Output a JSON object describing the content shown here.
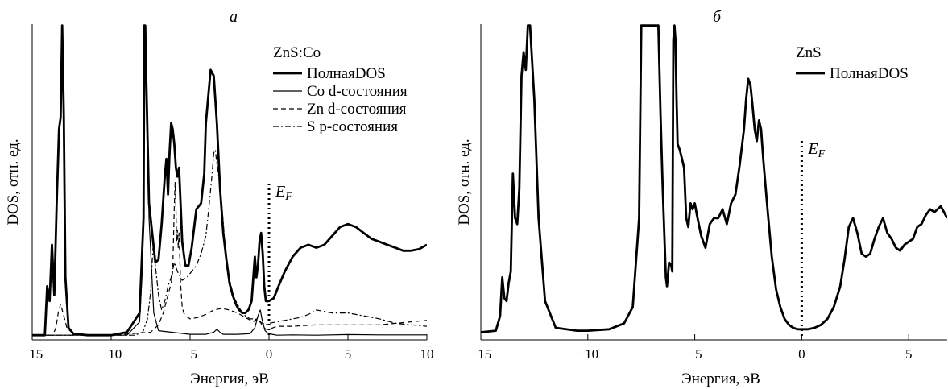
{
  "chart_data": [
    {
      "type": "line",
      "panel_label": "а",
      "xlabel": "Энергия, эВ",
      "ylabel": "DOS, отн. ед.",
      "xlim": [
        -15,
        10
      ],
      "xticks": [
        -15,
        -10,
        -5,
        0,
        5,
        10
      ],
      "tick_labels": [
        "−15",
        "−10",
        "−5",
        "0",
        "5",
        "10"
      ],
      "ylim": [
        0,
        100
      ],
      "legend_title": "ZnS:Co",
      "fermi_label": "E",
      "fermi_sub": "F",
      "fermi_x": 0,
      "series": [
        {
          "name": "ПолнаяDOS",
          "style": "thick",
          "x": [
            -15,
            -14.2,
            -14.05,
            -13.9,
            -13.75,
            -13.6,
            -13.45,
            -13.3,
            -13.2,
            -13.1,
            -13.0,
            -12.9,
            -12.7,
            -12.4,
            -11.5,
            -10,
            -9,
            -8.2,
            -7.95,
            -7.9,
            -7.85,
            -7.6,
            -7.2,
            -7.0,
            -6.8,
            -6.6,
            -6.5,
            -6.4,
            -6.3,
            -6.2,
            -6.1,
            -6.0,
            -5.9,
            -5.8,
            -5.7,
            -5.6,
            -5.5,
            -5.3,
            -5.1,
            -4.9,
            -4.6,
            -4.3,
            -4.1,
            -4.0,
            -3.7,
            -3.5,
            -3.3,
            -3.1,
            -2.9,
            -2.7,
            -2.5,
            -2.3,
            -2.1,
            -1.9,
            -1.7,
            -1.5,
            -1.3,
            -1.1,
            -0.9,
            -0.8,
            -0.7,
            -0.6,
            -0.5,
            -0.4,
            -0.3,
            -0.2,
            0.0,
            0.3,
            0.6,
            1.0,
            1.5,
            2.0,
            2.5,
            3.0,
            3.5,
            4.0,
            4.5,
            5.0,
            5.5,
            6.0,
            6.5,
            7.0,
            7.5,
            8.0,
            8.5,
            9.0,
            9.5,
            10.0
          ],
          "y": [
            0.5,
            0.5,
            17,
            12,
            31,
            14,
            45,
            70,
            74,
            105,
            75,
            20,
            3,
            1,
            0.5,
            0.5,
            1.5,
            8,
            40,
            105,
            105,
            45,
            25,
            26,
            38,
            54,
            60,
            48,
            62,
            72,
            70,
            65,
            57,
            54,
            57,
            45,
            32,
            24,
            24,
            30,
            43,
            45,
            55,
            72,
            90,
            88,
            72,
            50,
            35,
            26,
            18,
            14,
            11,
            9,
            8,
            8,
            9,
            12,
            27,
            20,
            24,
            32,
            35,
            28,
            17,
            12,
            12,
            13,
            17,
            22,
            27,
            30,
            31,
            30,
            31,
            34,
            37,
            38,
            37,
            35,
            33,
            32,
            31,
            30,
            29,
            29,
            29.5,
            31
          ]
        },
        {
          "name": "Co d-состояния",
          "style": "thin",
          "x": [
            -15,
            -9,
            -8.2,
            -8.0,
            -7.95,
            -7.9,
            -7.8,
            -7.6,
            -7.3,
            -7.0,
            -5,
            -4,
            -3.5,
            -3.3,
            -3.1,
            -2.9,
            -2,
            -1.2,
            -0.9,
            -0.7,
            -0.55,
            -0.45,
            -0.35,
            -0.25,
            -0.1,
            0.2,
            0.5,
            1.5,
            3,
            5,
            7,
            10
          ],
          "y": [
            0.5,
            0.5,
            5,
            25,
            60,
            105,
            105,
            40,
            8,
            2,
            0.8,
            0.8,
            1.5,
            2.5,
            1.5,
            0.8,
            0.8,
            1,
            3,
            7,
            9,
            6,
            4,
            2,
            1.3,
            0.8,
            0.5,
            0.6,
            0.5,
            0.7,
            0.6,
            0.6
          ]
        },
        {
          "name": "Zn d-состояния",
          "style": "dashed",
          "x": [
            -15,
            -13.7,
            -13.5,
            -13.35,
            -13.2,
            -13.0,
            -12.8,
            -12.5,
            -12,
            -10,
            -7.5,
            -7,
            -6.7,
            -6.5,
            -6.4,
            -6.3,
            -6.2,
            -6.1,
            -6.0,
            -5.95,
            -5.9,
            -5.85,
            -5.8,
            -5.75,
            -5.7,
            -5.6,
            -5.5,
            -5.4,
            -5.3,
            -5.0,
            -4.5,
            -4.0,
            -3.5,
            -3.0,
            -2.5,
            -2.0,
            -1.5,
            -1.0,
            -0.8,
            -0.6,
            -0.5,
            -0.4,
            -0.2,
            0.0,
            0.5,
            1.5,
            3.0,
            5.0,
            7.0,
            8.0,
            9.0,
            10.0
          ],
          "y": [
            0.5,
            0.5,
            3,
            8,
            11,
            7,
            3,
            1.5,
            0.7,
            0.5,
            1.5,
            4,
            8,
            12,
            14,
            16,
            18,
            22,
            44,
            52,
            44,
            32,
            36,
            30,
            35,
            18,
            10,
            8,
            7,
            6,
            6.5,
            7.5,
            9,
            9.5,
            9,
            8,
            6.5,
            5,
            6,
            5.5,
            4.5,
            3.5,
            2.5,
            2.5,
            3.5,
            3.5,
            4,
            4,
            4,
            4.5,
            5,
            5.5
          ]
        },
        {
          "name": "S p-состояния",
          "style": "dashdot",
          "x": [
            -15,
            -8.5,
            -8,
            -7.7,
            -7.5,
            -7.35,
            -7.2,
            -7.0,
            -6.8,
            -6.6,
            -6.4,
            -6.2,
            -6.0,
            -5.8,
            -5.5,
            -5.2,
            -4.9,
            -4.6,
            -4.3,
            -4.0,
            -3.8,
            -3.6,
            -3.5,
            -3.4,
            -3.3,
            -3.2,
            -3.0,
            -2.8,
            -2.6,
            -2.4,
            -2.2,
            -2.0,
            -1.8,
            -1.5,
            -1.2,
            -1.0,
            -0.8,
            -0.6,
            -0.4,
            -0.2,
            0.0,
            0.5,
            1.0,
            1.5,
            2.0,
            2.5,
            3.0,
            3.5,
            4.0,
            5.0,
            6.0,
            7.0,
            8.0,
            9.0,
            10.0
          ],
          "y": [
            0.5,
            0.5,
            1.5,
            6,
            15,
            30,
            24,
            14,
            9,
            12,
            17,
            20,
            25,
            22,
            19,
            20,
            22,
            24,
            28,
            34,
            44,
            55,
            62,
            63,
            58,
            55,
            45,
            32,
            23,
            17,
            13,
            11,
            9,
            7,
            6,
            6,
            5.5,
            5,
            4.5,
            4,
            4.5,
            5,
            5.5,
            6,
            6.5,
            7.5,
            9,
            8.5,
            8,
            8,
            7,
            6,
            4.5,
            4,
            3.5
          ]
        }
      ]
    },
    {
      "type": "line",
      "panel_label": "б",
      "xlabel": "Энергия, эВ",
      "ylabel": "DOS, отн. ед.",
      "xlim": [
        -15,
        6.8
      ],
      "xticks": [
        -15,
        -10,
        -5,
        0,
        5
      ],
      "tick_labels": [
        "−15",
        "−10",
        "−5",
        "0",
        "5"
      ],
      "ylim": [
        0,
        100
      ],
      "legend_title": "ZnS",
      "fermi_label": "E",
      "fermi_sub": "F",
      "fermi_x": 0,
      "series": [
        {
          "name": "ПолнаяDOS",
          "style": "thick",
          "x": [
            -15,
            -14.3,
            -14.1,
            -14.0,
            -13.9,
            -13.8,
            -13.7,
            -13.6,
            -13.5,
            -13.4,
            -13.3,
            -13.2,
            -13.1,
            -13.0,
            -12.9,
            -12.8,
            -12.7,
            -12.5,
            -12.3,
            -12.0,
            -11.5,
            -10.5,
            -10,
            -9,
            -8.3,
            -7.9,
            -7.6,
            -7.5,
            -7.4,
            -6.7,
            -6.6,
            -6.5,
            -6.4,
            -6.35,
            -6.3,
            -6.2,
            -6.1,
            -6.05,
            -6.0,
            -5.95,
            -5.9,
            -5.85,
            -5.8,
            -5.7,
            -5.6,
            -5.5,
            -5.4,
            -5.3,
            -5.2,
            -5.1,
            -5.0,
            -4.9,
            -4.7,
            -4.5,
            -4.3,
            -4.1,
            -3.9,
            -3.7,
            -3.5,
            -3.3,
            -3.1,
            -2.9,
            -2.7,
            -2.6,
            -2.5,
            -2.4,
            -2.3,
            -2.2,
            -2.1,
            -2.0,
            -1.9,
            -1.8,
            -1.6,
            -1.4,
            -1.2,
            -1.0,
            -0.8,
            -0.6,
            -0.4,
            -0.2,
            0.0,
            0.3,
            0.6,
            0.9,
            1.2,
            1.5,
            1.8,
            2.0,
            2.2,
            2.4,
            2.6,
            2.8,
            3.0,
            3.2,
            3.4,
            3.6,
            3.8,
            4.0,
            4.2,
            4.4,
            4.6,
            4.8,
            5.0,
            5.2,
            5.4,
            5.6,
            5.8,
            6.0,
            6.2,
            6.5,
            6.8
          ],
          "y": [
            1.5,
            2,
            7,
            20,
            13,
            12,
            18,
            22,
            55,
            40,
            38,
            50,
            88,
            96,
            90,
            105,
            105,
            80,
            40,
            12,
            3,
            2,
            2,
            2.5,
            4.5,
            10,
            40,
            105,
            105,
            105,
            75,
            50,
            30,
            20,
            17,
            25,
            24,
            22,
            100,
            105,
            100,
            80,
            65,
            63,
            60,
            57,
            40,
            37,
            45,
            43,
            45,
            41,
            34,
            30,
            38,
            40,
            40,
            43,
            38,
            45,
            48,
            58,
            70,
            80,
            87,
            85,
            78,
            70,
            66,
            73,
            70,
            60,
            43,
            27,
            16,
            10,
            6,
            4,
            3,
            2.5,
            2.5,
            2.5,
            3,
            4,
            6,
            10,
            17,
            26,
            37,
            40,
            35,
            28,
            27,
            28,
            33,
            37,
            40,
            35,
            33,
            30,
            29,
            31,
            32,
            33,
            37,
            38,
            41,
            43,
            42,
            44,
            40
          ]
        }
      ]
    }
  ]
}
